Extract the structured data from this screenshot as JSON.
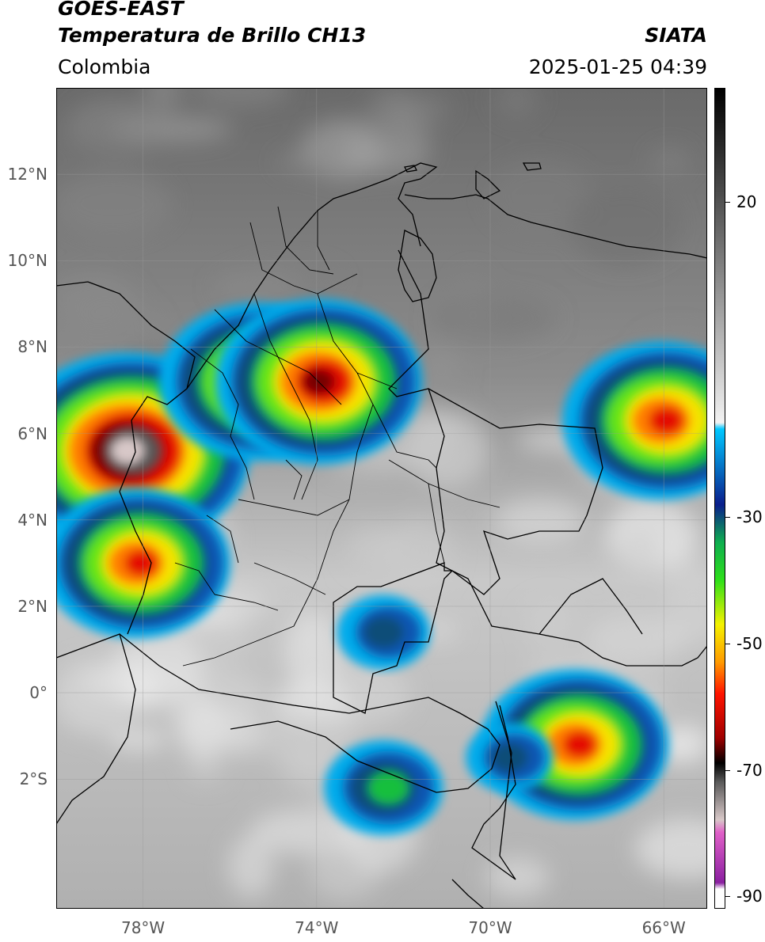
{
  "header": {
    "satellite": "GOES-EAST",
    "product": "Temperatura de Brillo CH13",
    "region": "Colombia",
    "organization": "SIATA",
    "datetime": "2025-01-25 04:39"
  },
  "map": {
    "projection": "lat-lon",
    "lon_range": [
      -80,
      -65
    ],
    "lat_range": [
      -5,
      14
    ],
    "graticule": true,
    "lat_ticks": [
      {
        "value": 12,
        "label": "12°N"
      },
      {
        "value": 10,
        "label": "10°N"
      },
      {
        "value": 8,
        "label": "8°N"
      },
      {
        "value": 6,
        "label": "6°N"
      },
      {
        "value": 4,
        "label": "4°N"
      },
      {
        "value": 2,
        "label": "2°N"
      },
      {
        "value": 0,
        "label": "0°"
      },
      {
        "value": -2,
        "label": "2°S"
      }
    ],
    "lon_ticks": [
      {
        "value": -78,
        "label": "78°W"
      },
      {
        "value": -74,
        "label": "74°W"
      },
      {
        "value": -70,
        "label": "70°W"
      },
      {
        "value": -66,
        "label": "66°W"
      }
    ],
    "storm_cells": [
      {
        "lon": -78.3,
        "lat": 5.6,
        "min_temp": -80
      },
      {
        "lon": -78.1,
        "lat": 3.0,
        "min_temp": -62
      },
      {
        "lon": -75.3,
        "lat": 7.2,
        "min_temp": -65
      },
      {
        "lon": -73.9,
        "lat": 7.2,
        "min_temp": -68
      },
      {
        "lon": -66.0,
        "lat": 6.3,
        "min_temp": -65
      },
      {
        "lon": -68.0,
        "lat": -1.2,
        "min_temp": -62
      },
      {
        "lon": -72.4,
        "lat": 1.4,
        "min_temp": -32
      },
      {
        "lon": -72.4,
        "lat": -2.2,
        "min_temp": -40
      },
      {
        "lon": -69.5,
        "lat": -1.5,
        "min_temp": -30
      }
    ]
  },
  "colorbar": {
    "range": [
      -92,
      38
    ],
    "ticks": [
      {
        "value": 20,
        "label": "20"
      },
      {
        "value": -30,
        "label": "-30"
      },
      {
        "value": -50,
        "label": "-50"
      },
      {
        "value": -70,
        "label": "-70"
      },
      {
        "value": -90,
        "label": "-90"
      }
    ],
    "stops": [
      {
        "value": 38,
        "color": "#000000"
      },
      {
        "value": -15,
        "color": "#f2f2f2"
      },
      {
        "value": -16,
        "color": "#00c8ff"
      },
      {
        "value": -28,
        "color": "#0a1e8c"
      },
      {
        "value": -34,
        "color": "#0fae50"
      },
      {
        "value": -40,
        "color": "#2ee01a"
      },
      {
        "value": -47,
        "color": "#f4f200"
      },
      {
        "value": -53,
        "color": "#ff9a00"
      },
      {
        "value": -58,
        "color": "#ff1400"
      },
      {
        "value": -65,
        "color": "#a00000"
      },
      {
        "value": -69,
        "color": "#000000"
      },
      {
        "value": -72,
        "color": "#5a5a5a"
      },
      {
        "value": -78,
        "color": "#d8c8c8"
      },
      {
        "value": -80,
        "color": "#e060c8"
      },
      {
        "value": -88,
        "color": "#8a1fa0"
      },
      {
        "value": -89,
        "color": "#ffffff"
      }
    ]
  }
}
